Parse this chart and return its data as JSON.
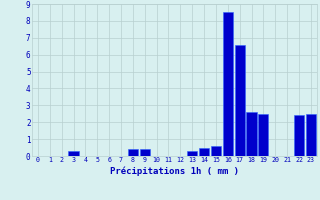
{
  "hours": [
    0,
    1,
    2,
    3,
    4,
    5,
    6,
    7,
    8,
    9,
    10,
    11,
    12,
    13,
    14,
    15,
    16,
    17,
    18,
    19,
    20,
    21,
    22,
    23
  ],
  "values": [
    0,
    0,
    0,
    0.3,
    0,
    0,
    0,
    0,
    0.4,
    0.4,
    0,
    0,
    0,
    0.3,
    0.5,
    0.6,
    8.5,
    6.6,
    2.6,
    2.5,
    0,
    0,
    2.4,
    2.5
  ],
  "bar_color": "#0000cc",
  "bar_edge_color": "#3366ff",
  "background_color": "#d8f0f0",
  "grid_color": "#b8d0d0",
  "text_color": "#0000bb",
  "xlabel": "Précipitations 1h ( mm )",
  "ylim": [
    0,
    9
  ],
  "yticks": [
    0,
    1,
    2,
    3,
    4,
    5,
    6,
    7,
    8,
    9
  ]
}
